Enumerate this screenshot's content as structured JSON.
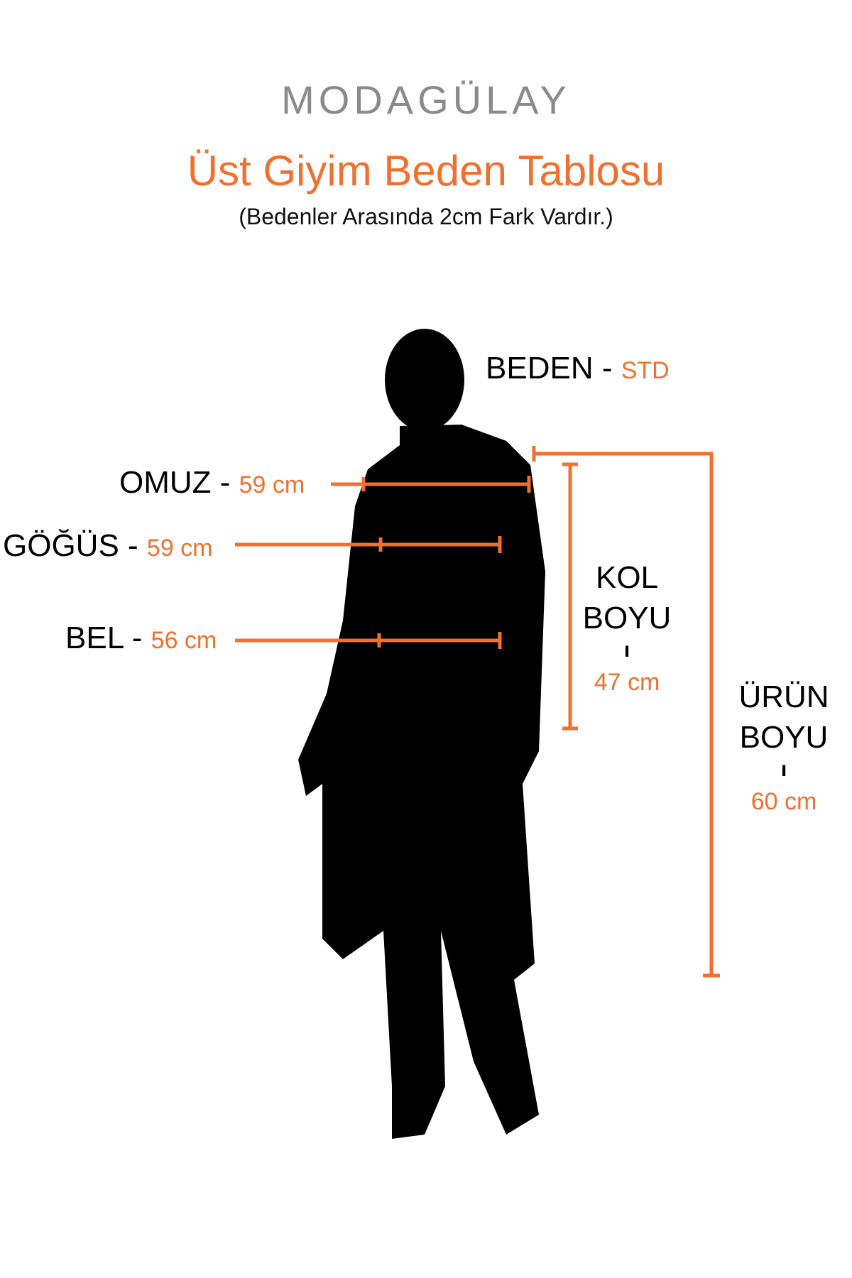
{
  "brand": {
    "logo": "MODAGÜLAY"
  },
  "header": {
    "title": "Üst Giyim Beden Tablosu",
    "subtitle": "(Bedenler Arasında 2cm Fark Vardır.)"
  },
  "measurements": {
    "size": {
      "label": "BEDEN -",
      "value": "STD"
    },
    "shoulder": {
      "label": "OMUZ -",
      "value": "59 cm"
    },
    "chest": {
      "label": "GÖĞÜS -",
      "value": "59 cm"
    },
    "waist": {
      "label": "BEL -",
      "value": "56 cm"
    },
    "sleeve": {
      "label_line1": "KOL",
      "label_line2": "BOYU",
      "separator": "ı",
      "value": "47 cm"
    },
    "length": {
      "label_line1": "ÜRÜN",
      "label_line2": "BOYU",
      "separator": "ı",
      "value": "60 cm"
    }
  },
  "colors": {
    "accent": "#f07030",
    "logo": "#8a8a8a",
    "silhouette": "#000000"
  }
}
